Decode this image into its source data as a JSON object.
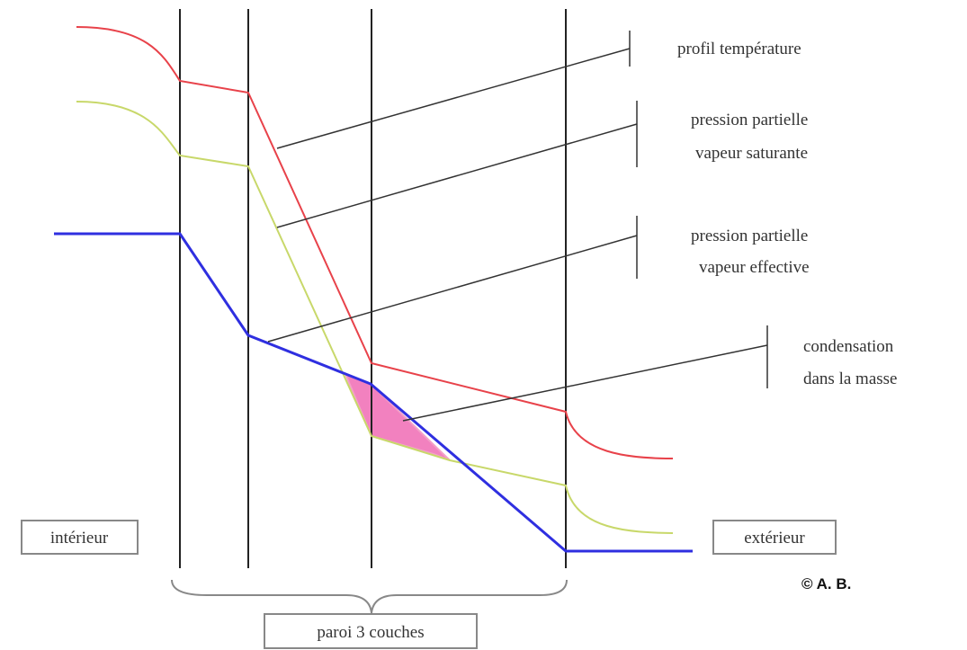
{
  "labels": {
    "temperature": "profil température",
    "saturated_line1": "pression partielle",
    "saturated_line2": "vapeur saturante",
    "effective_line1": "pression partielle",
    "effective_line2": "vapeur effective",
    "condensation_line1": "condensation",
    "condensation_line2": "dans la masse"
  },
  "boxes": {
    "interior": "intérieur",
    "exterior": "extérieur",
    "wall": "paroi 3 couches"
  },
  "copyright": "© A. B.",
  "colors": {
    "temperature": "#e8424a",
    "saturated_pressure": "#c8d86a",
    "effective_pressure": "#2f2fe0",
    "condensation_zone": "#f06bb4",
    "wall_lines": "#222222",
    "leader_lines": "#333333"
  }
}
